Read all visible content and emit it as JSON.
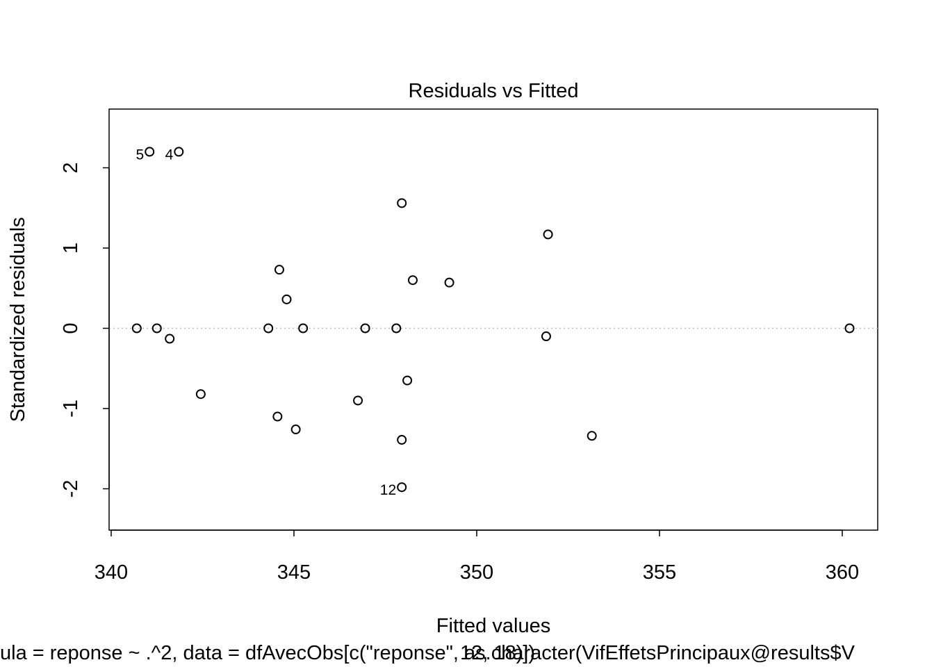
{
  "chart_data": {
    "type": "scatter",
    "title": "Residuals vs Fitted",
    "xlabel": "Fitted values",
    "ylabel": "Standardized residuals",
    "subtitle": "ula = reponse ~ .^2, data = dfAvecObs[c(\"reponse\", as.character(VifEffetsPrincipaux@results$V",
    "subtitle_overlay": "12, 18)])",
    "xlim": [
      340,
      361
    ],
    "ylim": [
      -2.5,
      2.7
    ],
    "x_ticks": [
      "340",
      "345",
      "350",
      "355",
      "360"
    ],
    "y_ticks": [
      "-2",
      "-1",
      "0",
      "1",
      "2"
    ],
    "reference_line": 0,
    "grid": false,
    "points": [
      {
        "x": 341.05,
        "y": 2.2,
        "label": "5"
      },
      {
        "x": 341.85,
        "y": 2.2,
        "label": "4"
      },
      {
        "x": 347.95,
        "y": -1.98,
        "label": "12"
      },
      {
        "x": 347.95,
        "y": 1.56
      },
      {
        "x": 351.95,
        "y": 1.17
      },
      {
        "x": 344.6,
        "y": 0.73
      },
      {
        "x": 348.25,
        "y": 0.6
      },
      {
        "x": 349.25,
        "y": 0.57
      },
      {
        "x": 344.8,
        "y": 0.36
      },
      {
        "x": 340.7,
        "y": 0.0
      },
      {
        "x": 341.25,
        "y": 0.0
      },
      {
        "x": 344.3,
        "y": 0.0
      },
      {
        "x": 345.25,
        "y": 0.0
      },
      {
        "x": 346.95,
        "y": 0.0
      },
      {
        "x": 347.8,
        "y": 0.0
      },
      {
        "x": 360.2,
        "y": 0.0
      },
      {
        "x": 341.6,
        "y": -0.13
      },
      {
        "x": 351.9,
        "y": -0.1
      },
      {
        "x": 348.1,
        "y": -0.65
      },
      {
        "x": 342.45,
        "y": -0.82
      },
      {
        "x": 346.75,
        "y": -0.9
      },
      {
        "x": 344.55,
        "y": -1.1
      },
      {
        "x": 345.05,
        "y": -1.26
      },
      {
        "x": 353.15,
        "y": -1.34
      },
      {
        "x": 347.95,
        "y": -1.39
      }
    ]
  }
}
